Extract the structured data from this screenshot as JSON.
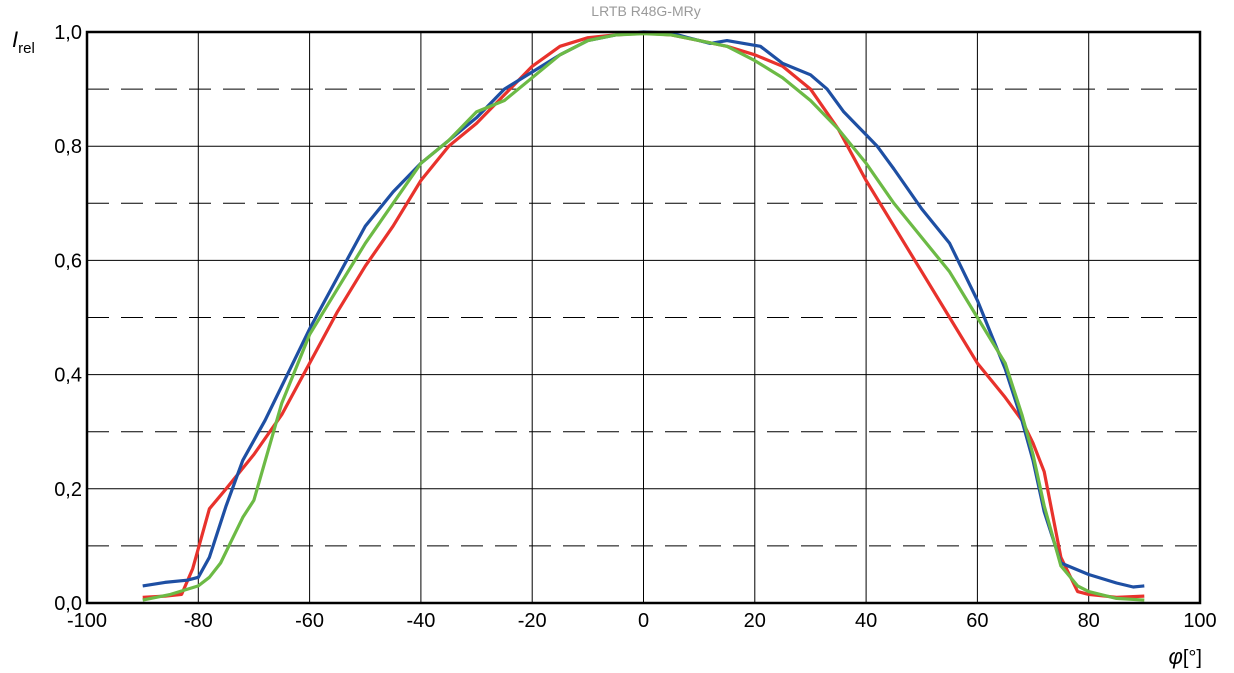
{
  "chart_data": {
    "type": "line",
    "title": "LRTB R48G-MRy",
    "ylabel": {
      "symbol": "I",
      "subscript": "rel"
    },
    "xlabel": {
      "symbol": "φ",
      "unit": "[°]"
    },
    "xlim": [
      -100,
      100
    ],
    "ylim": [
      0,
      1.0
    ],
    "x_ticks": [
      -100,
      -80,
      -60,
      -40,
      -20,
      0,
      20,
      40,
      60,
      80,
      100
    ],
    "x_tick_labels": [
      "-100",
      "-80",
      "-60",
      "-40",
      "-20",
      "0",
      "20",
      "40",
      "60",
      "80",
      "100"
    ],
    "y_ticks": [
      0,
      0.2,
      0.4,
      0.6,
      0.8,
      1.0
    ],
    "y_tick_labels": [
      "0,0",
      "0,2",
      "0,4",
      "0,6",
      "0,8",
      "1,0"
    ],
    "y_minor_dashed": [
      0.1,
      0.3,
      0.5,
      0.7,
      0.9
    ],
    "grid": true,
    "series": [
      {
        "color": "#e8322c",
        "x": [
          -90,
          -86,
          -83,
          -81,
          -78,
          -75,
          -70,
          -65,
          -60,
          -55,
          -50,
          -45,
          -40,
          -35,
          -30,
          -25,
          -20,
          -15,
          -10,
          -5,
          0,
          5,
          10,
          15,
          20,
          25,
          30,
          35,
          40,
          45,
          50,
          55,
          60,
          65,
          68,
          70,
          72,
          75,
          78,
          80,
          85,
          90
        ],
        "y": [
          0.01,
          0.012,
          0.015,
          0.06,
          0.165,
          0.2,
          0.26,
          0.33,
          0.42,
          0.51,
          0.59,
          0.66,
          0.74,
          0.8,
          0.84,
          0.89,
          0.94,
          0.975,
          0.99,
          0.995,
          0.998,
          0.995,
          0.985,
          0.975,
          0.96,
          0.94,
          0.9,
          0.83,
          0.74,
          0.66,
          0.58,
          0.5,
          0.42,
          0.36,
          0.32,
          0.28,
          0.23,
          0.08,
          0.02,
          0.015,
          0.01,
          0.012
        ]
      },
      {
        "color": "#1e4fa3",
        "x": [
          -90,
          -86,
          -82,
          -80,
          -78,
          -75,
          -72,
          -68,
          -65,
          -60,
          -55,
          -50,
          -45,
          -40,
          -35,
          -30,
          -25,
          -20,
          -15,
          -10,
          -5,
          0,
          5,
          8,
          12,
          15,
          18,
          21,
          25,
          30,
          33,
          36,
          40,
          42,
          45,
          50,
          55,
          60,
          65,
          68,
          70,
          72,
          75,
          80,
          85,
          88,
          90
        ],
        "y": [
          0.03,
          0.036,
          0.04,
          0.045,
          0.08,
          0.17,
          0.25,
          0.32,
          0.38,
          0.48,
          0.57,
          0.66,
          0.72,
          0.77,
          0.81,
          0.85,
          0.9,
          0.93,
          0.96,
          0.985,
          0.995,
          1.0,
          0.998,
          0.99,
          0.98,
          0.985,
          0.98,
          0.975,
          0.945,
          0.925,
          0.9,
          0.86,
          0.82,
          0.8,
          0.76,
          0.69,
          0.63,
          0.53,
          0.41,
          0.32,
          0.25,
          0.16,
          0.07,
          0.05,
          0.035,
          0.028,
          0.03
        ]
      },
      {
        "color": "#6cba45",
        "x": [
          -90,
          -85,
          -80,
          -78,
          -76,
          -74,
          -72,
          -70,
          -65,
          -60,
          -55,
          -50,
          -45,
          -40,
          -35,
          -30,
          -25,
          -20,
          -15,
          -10,
          -5,
          0,
          5,
          10,
          15,
          20,
          25,
          30,
          35,
          40,
          45,
          50,
          55,
          60,
          65,
          68,
          70,
          72,
          75,
          78,
          80,
          85,
          90
        ],
        "y": [
          0.005,
          0.015,
          0.03,
          0.045,
          0.07,
          0.11,
          0.15,
          0.18,
          0.35,
          0.47,
          0.55,
          0.63,
          0.7,
          0.77,
          0.81,
          0.86,
          0.88,
          0.92,
          0.96,
          0.985,
          0.995,
          0.997,
          0.995,
          0.985,
          0.975,
          0.95,
          0.92,
          0.88,
          0.83,
          0.77,
          0.7,
          0.64,
          0.58,
          0.5,
          0.42,
          0.33,
          0.26,
          0.17,
          0.065,
          0.03,
          0.02,
          0.008,
          0.005
        ]
      }
    ]
  }
}
